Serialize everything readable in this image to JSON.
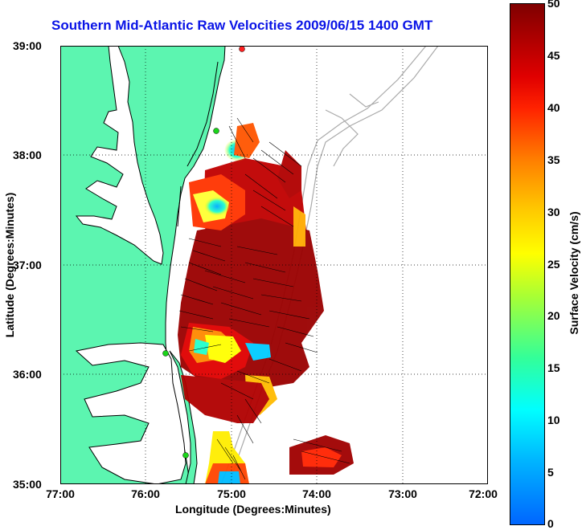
{
  "title": "Southern Mid-Atlantic Raw Velocities 2009/06/15 1400 GMT",
  "xlabel": "Longitude (Degrees:Minutes)",
  "ylabel": "Latitude (Degrees:Minutes)",
  "colorbar_label": "Surface Velocity (cm/s)",
  "x_ticks": [
    "77:00",
    "76:00",
    "75:00",
    "74:00",
    "73:00",
    "72:00"
  ],
  "y_ticks": [
    "39:00",
    "38:00",
    "37:00",
    "36:00",
    "35:00"
  ],
  "colorbar_ticks": [
    "50",
    "45",
    "40",
    "35",
    "30",
    "25",
    "20",
    "15",
    "10",
    "5",
    "0"
  ],
  "colors": {
    "title": "#0a14e6",
    "land": "#5cf5b0",
    "coastline": "#000000",
    "bathymetry": "#aaaaaa",
    "vectors": "#000000",
    "station_markers": "#1ad41a"
  },
  "map": {
    "lon_range": [
      -77,
      -72
    ],
    "lat_range": [
      35,
      39
    ],
    "grid": true,
    "colormap": "jet",
    "velocity_range_cm_s": [
      0,
      50
    ]
  }
}
